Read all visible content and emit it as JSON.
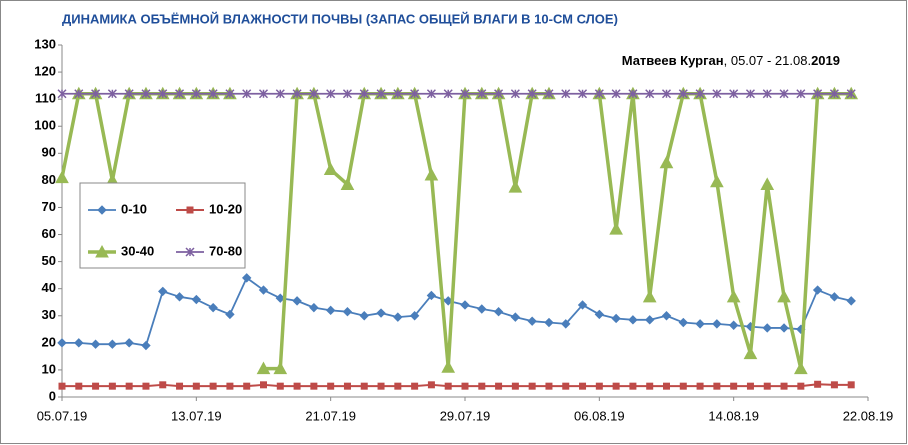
{
  "chart_data": {
    "type": "line",
    "title": "ДИНАМИКА  ОБЪЁМНОЙ ВЛАЖНОСТИ ПОЧВЫ (ЗАПАС ОБЩЕЙ ВЛАГИ В 10-СМ СЛОЕ)",
    "subtitle": [
      "Матвеев Курган",
      ", 05.07 - 21.08.",
      "2019"
    ],
    "categories": [
      "05.07.19",
      null,
      null,
      null,
      null,
      null,
      null,
      null,
      "13.07.19",
      null,
      null,
      null,
      null,
      null,
      null,
      null,
      "21.07.19",
      null,
      null,
      null,
      null,
      null,
      null,
      null,
      "29.07.19",
      null,
      null,
      null,
      null,
      null,
      null,
      null,
      "06.08.19",
      null,
      null,
      null,
      null,
      null,
      null,
      null,
      "14.08.19",
      null,
      null,
      null,
      null,
      null,
      null,
      null,
      "22.08.19"
    ],
    "series": [
      {
        "name": "0-10",
        "color": "#4a7ebb",
        "marker": "diamond",
        "values": [
          20,
          20,
          19.5,
          19.5,
          20,
          19,
          39,
          37,
          36,
          33,
          30.5,
          44,
          39.5,
          36.5,
          35.5,
          33,
          32,
          31.5,
          30,
          31,
          29.5,
          30,
          37.5,
          35.5,
          34,
          32.5,
          31.5,
          29.5,
          28,
          27.5,
          27,
          34,
          30.5,
          29,
          28.5,
          28.5,
          30,
          27.5,
          27,
          27,
          26.5,
          26,
          25.5,
          25.5,
          25,
          39.5,
          37,
          35.5,
          null
        ]
      },
      {
        "name": "10-20",
        "color": "#be4b48",
        "marker": "square",
        "values": [
          4,
          4,
          4,
          4,
          4,
          4,
          4.5,
          4,
          4,
          4,
          4,
          4,
          4.5,
          4,
          4,
          4,
          4,
          4,
          4,
          4,
          4,
          4,
          4.5,
          4,
          4,
          4,
          4,
          4,
          4,
          4,
          4,
          4,
          4,
          4,
          4,
          4,
          4,
          4,
          4,
          4,
          4,
          4,
          4,
          4,
          4,
          4.7,
          4.5,
          4.5,
          null
        ]
      },
      {
        "name": "30-40",
        "color": "#98b954",
        "marker": "triangle",
        "values": [
          81,
          112,
          112,
          80,
          112,
          112,
          112,
          112,
          112,
          112,
          112,
          null,
          10.5,
          10.5,
          112,
          112,
          84,
          78.5,
          112,
          112,
          112,
          112,
          82,
          11,
          112,
          112,
          112,
          77.5,
          112,
          112,
          null,
          null,
          112,
          62,
          112,
          37,
          86.5,
          112,
          112,
          79.5,
          37,
          16,
          78.5,
          37,
          10.5,
          112,
          112,
          112,
          null
        ]
      },
      {
        "name": "70-80",
        "color": "#7d60a0",
        "marker": "star",
        "values": [
          112,
          112,
          112,
          112,
          112,
          112,
          112,
          112,
          112,
          112,
          112,
          112,
          112,
          112,
          112,
          112,
          112,
          112,
          112,
          112,
          112,
          112,
          112,
          112,
          112,
          112,
          112,
          112,
          112,
          112,
          112,
          112,
          112,
          112,
          112,
          112,
          112,
          112,
          112,
          112,
          112,
          112,
          112,
          112,
          112,
          112,
          112,
          112,
          null
        ]
      }
    ],
    "ylim": [
      0,
      130
    ],
    "yticks": [
      0,
      10,
      20,
      30,
      40,
      50,
      60,
      70,
      80,
      90,
      100,
      110,
      120,
      130
    ],
    "grid": false,
    "legend": "left"
  }
}
